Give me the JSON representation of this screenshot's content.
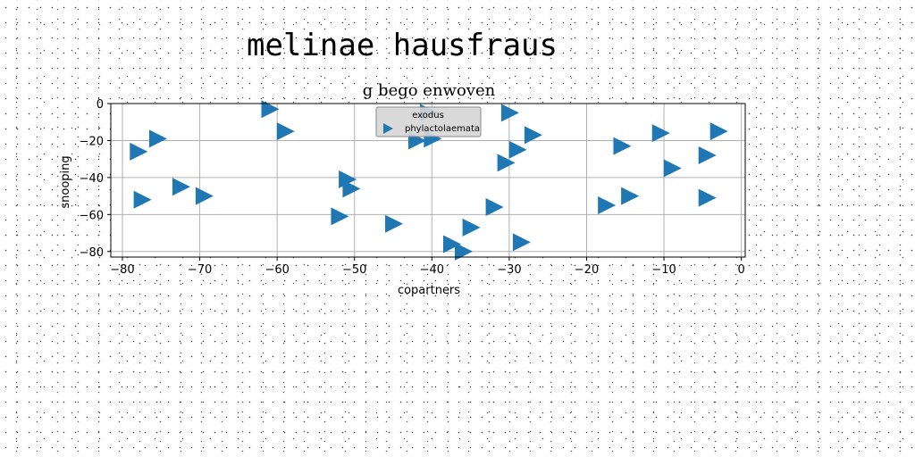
{
  "chart_data": {
    "type": "scatter",
    "suptitle": "melinae hausfraus",
    "title": "g bego enwoven",
    "xlabel": "copartners",
    "ylabel": "snooping",
    "xlim": [
      -81.5,
      0.5
    ],
    "ylim": [
      -83,
      0
    ],
    "xticks": [
      -80,
      -70,
      -60,
      -50,
      -40,
      -30,
      -20,
      -10,
      0
    ],
    "yticks": [
      0,
      -20,
      -40,
      -60,
      -80
    ],
    "grid": true,
    "marker": "triangle-right",
    "legend": {
      "title": "exodus",
      "placement": "top-center"
    },
    "series": [
      {
        "name": "phylactolaemata",
        "color": "#1f77b4",
        "points": [
          {
            "x": -61,
            "y": -3
          },
          {
            "x": -59,
            "y": -15
          },
          {
            "x": -75.5,
            "y": -19
          },
          {
            "x": -78,
            "y": -26
          },
          {
            "x": -72.5,
            "y": -45
          },
          {
            "x": -69.5,
            "y": -50
          },
          {
            "x": -77.5,
            "y": -52
          },
          {
            "x": -51,
            "y": -41
          },
          {
            "x": -50.5,
            "y": -46
          },
          {
            "x": -52,
            "y": -61
          },
          {
            "x": -45,
            "y": -65
          },
          {
            "x": -40.5,
            "y": -5
          },
          {
            "x": -42,
            "y": -20
          },
          {
            "x": -40,
            "y": -19
          },
          {
            "x": -30,
            "y": -5
          },
          {
            "x": -27,
            "y": -17
          },
          {
            "x": -29,
            "y": -25
          },
          {
            "x": -30.5,
            "y": -32
          },
          {
            "x": -32,
            "y": -56
          },
          {
            "x": -35,
            "y": -67
          },
          {
            "x": -37.5,
            "y": -76
          },
          {
            "x": -36,
            "y": -80
          },
          {
            "x": -28.5,
            "y": -75
          },
          {
            "x": -15.5,
            "y": -23
          },
          {
            "x": -10.5,
            "y": -16
          },
          {
            "x": -9,
            "y": -35
          },
          {
            "x": -17.5,
            "y": -55
          },
          {
            "x": -14.5,
            "y": -50
          },
          {
            "x": -4.5,
            "y": -28
          },
          {
            "x": -4.5,
            "y": -51
          },
          {
            "x": -3,
            "y": -15
          }
        ]
      }
    ]
  }
}
